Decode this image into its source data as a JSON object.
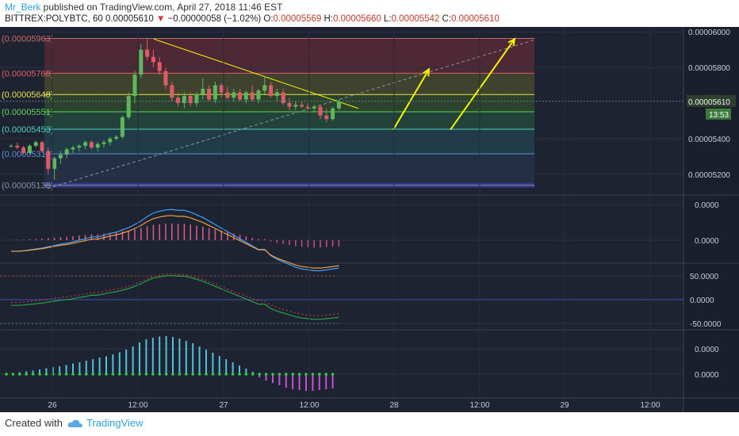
{
  "header": {
    "author": "Mr_Berk",
    "published_text": " published on TradingView.com, April 27, 2018 11:46 EST",
    "symbol": "BITTREX:POLYBTC, 60",
    "last": "0.00005610",
    "change_arrow": "▼",
    "change": "−0.00000058 (−1.02%)",
    "o_label": "O:",
    "o": "0.00005569",
    "h_label": "H:",
    "h": "0.00005660",
    "l_label": "L:",
    "l": "0.00005542",
    "c_label": "C:",
    "c": "0.00005610"
  },
  "footer": {
    "created_with": "Created with",
    "brand": "TradingView"
  },
  "colors": {
    "chart_bg": "#1d2330",
    "up": "#5cb85c",
    "down": "#e05b6a",
    "trend": "#f5f500",
    "cyan": "#4fc3d9",
    "magenta": "#c94fd9"
  },
  "chart_data": {
    "type": "candlestick",
    "price_ylim": [
      5.11e-05,
      6.01e-05
    ],
    "price_ticks": [
      {
        "value": 6e-05,
        "label": "0.00006000"
      },
      {
        "value": 5.8e-05,
        "label": "0.00005800"
      },
      {
        "value": 5.4e-05,
        "label": "0.00005400"
      },
      {
        "value": 5.2e-05,
        "label": "0.00005200"
      }
    ],
    "last_price": {
      "value": 5.61e-05,
      "label": "0.00005610",
      "countdown": "13:53"
    },
    "fib_levels": [
      {
        "value": 5.963e-05,
        "label": "(0.00005963)",
        "color": "#c96a6a"
      },
      {
        "value": 5.768e-05,
        "label": "(0.00005768)",
        "color": "#e05b6a"
      },
      {
        "value": 5.648e-05,
        "label": "(0.00005648)",
        "color": "#e3e34a"
      },
      {
        "value": 5.551e-05,
        "label": "(0.00005551)",
        "color": "#5cd65c"
      },
      {
        "value": 5.453e-05,
        "label": "(0.00005453)",
        "color": "#4fd1c5"
      },
      {
        "value": 5.315e-05,
        "label": "(0.00005315)",
        "color": "#5b8fd6"
      },
      {
        "value": 5.138e-05,
        "label": "(0.00005138)",
        "color": "#8a8fa6"
      }
    ],
    "x_ticks": [
      "26",
      "12:00",
      "27",
      "12:00",
      "28",
      "12:00",
      "29",
      "12:00"
    ],
    "candles": [
      [
        5.36e-05,
        5.37e-05,
        5.35e-05,
        5.36e-05
      ],
      [
        5.36e-05,
        5.38e-05,
        5.34e-05,
        5.35e-05
      ],
      [
        5.35e-05,
        5.36e-05,
        5.31e-05,
        5.32e-05
      ],
      [
        5.32e-05,
        5.37e-05,
        5.31e-05,
        5.36e-05
      ],
      [
        5.36e-05,
        5.39e-05,
        5.35e-05,
        5.38e-05
      ],
      [
        5.38e-05,
        5.39e-05,
        5.32e-05,
        5.33e-05
      ],
      [
        5.33e-05,
        5.35e-05,
        5.2e-05,
        5.23e-05
      ],
      [
        5.23e-05,
        5.3e-05,
        5.17e-05,
        5.29e-05
      ],
      [
        5.29e-05,
        5.33e-05,
        5.26e-05,
        5.31e-05
      ],
      [
        5.31e-05,
        5.35e-05,
        5.29e-05,
        5.34e-05
      ],
      [
        5.34e-05,
        5.36e-05,
        5.32e-05,
        5.35e-05
      ],
      [
        5.35e-05,
        5.37e-05,
        5.33e-05,
        5.36e-05
      ],
      [
        5.36e-05,
        5.39e-05,
        5.34e-05,
        5.38e-05
      ],
      [
        5.38e-05,
        5.39e-05,
        5.34e-05,
        5.35e-05
      ],
      [
        5.35e-05,
        5.38e-05,
        5.33e-05,
        5.37e-05
      ],
      [
        5.37e-05,
        5.39e-05,
        5.35e-05,
        5.38e-05
      ],
      [
        5.38e-05,
        5.41e-05,
        5.36e-05,
        5.4e-05
      ],
      [
        5.4e-05,
        5.42e-05,
        5.39e-05,
        5.41e-05
      ],
      [
        5.41e-05,
        5.53e-05,
        5.4e-05,
        5.52e-05
      ],
      [
        5.52e-05,
        5.66e-05,
        5.51e-05,
        5.64e-05
      ],
      [
        5.64e-05,
        5.78e-05,
        5.6e-05,
        5.76e-05
      ],
      [
        5.76e-05,
        5.93e-05,
        5.74e-05,
        5.9e-05
      ],
      [
        5.9e-05,
        5.96e-05,
        5.84e-05,
        5.86e-05
      ],
      [
        5.86e-05,
        5.9e-05,
        5.8e-05,
        5.83e-05
      ],
      [
        5.83e-05,
        5.86e-05,
        5.76e-05,
        5.78e-05
      ],
      [
        5.78e-05,
        5.8e-05,
        5.68e-05,
        5.7e-05
      ],
      [
        5.7e-05,
        5.72e-05,
        5.61e-05,
        5.63e-05
      ],
      [
        5.63e-05,
        5.66e-05,
        5.58e-05,
        5.6e-05
      ],
      [
        5.6e-05,
        5.66e-05,
        5.57e-05,
        5.64e-05
      ],
      [
        5.64e-05,
        5.66e-05,
        5.58e-05,
        5.6e-05
      ],
      [
        5.6e-05,
        5.66e-05,
        5.58e-05,
        5.65e-05
      ],
      [
        5.65e-05,
        5.74e-05,
        5.62e-05,
        5.68e-05
      ],
      [
        5.68e-05,
        5.7e-05,
        5.61e-05,
        5.62e-05
      ],
      [
        5.62e-05,
        5.72e-05,
        5.6e-05,
        5.7e-05
      ],
      [
        5.7e-05,
        5.71e-05,
        5.63e-05,
        5.66e-05
      ],
      [
        5.66e-05,
        5.69e-05,
        5.62e-05,
        5.63e-05
      ],
      [
        5.63e-05,
        5.68e-05,
        5.61e-05,
        5.66e-05
      ],
      [
        5.66e-05,
        5.68e-05,
        5.61e-05,
        5.62e-05
      ],
      [
        5.62e-05,
        5.67e-05,
        5.6e-05,
        5.66e-05
      ],
      [
        5.66e-05,
        5.7e-05,
        5.61e-05,
        5.62e-05
      ],
      [
        5.62e-05,
        5.68e-05,
        5.6e-05,
        5.67e-05
      ],
      [
        5.67e-05,
        5.75e-05,
        5.65e-05,
        5.7e-05
      ],
      [
        5.7e-05,
        5.72e-05,
        5.63e-05,
        5.64e-05
      ],
      [
        5.64e-05,
        5.68e-05,
        5.61e-05,
        5.66e-05
      ],
      [
        5.66e-05,
        5.68e-05,
        5.59e-05,
        5.6e-05
      ],
      [
        5.6e-05,
        5.63e-05,
        5.56e-05,
        5.58e-05
      ],
      [
        5.58e-05,
        5.61e-05,
        5.56e-05,
        5.59e-05
      ],
      [
        5.59e-05,
        5.61e-05,
        5.57e-05,
        5.58e-05
      ],
      [
        5.58e-05,
        5.6e-05,
        5.56e-05,
        5.57e-05
      ],
      [
        5.57e-05,
        5.59e-05,
        5.55e-05,
        5.58e-05
      ],
      [
        5.58e-05,
        5.59e-05,
        5.51e-05,
        5.53e-05
      ],
      [
        5.53e-05,
        5.57e-05,
        5.49e-05,
        5.51e-05
      ],
      [
        5.51e-05,
        5.58e-05,
        5.5e-05,
        5.57e-05
      ],
      [
        5.57e-05,
        5.62e-05,
        5.56e-05,
        5.61e-05
      ]
    ],
    "macd_ticks": [
      {
        "value": 0.0,
        "label": "0.0000"
      },
      {
        "value": 0.0,
        "label": "0.0000"
      }
    ],
    "rsi_ticks": [
      {
        "value": 50,
        "label": "50.0000"
      },
      {
        "value": 0,
        "label": "0.0000"
      },
      {
        "value": -50,
        "label": "-50.0000"
      }
    ],
    "hist_ticks": [
      {
        "value": 1,
        "label": "0.0000"
      },
      {
        "value": 0,
        "label": "0.0000"
      }
    ],
    "histogram": [
      0.02,
      0.03,
      0.05,
      0.07,
      0.09,
      0.12,
      0.15,
      0.18,
      0.2,
      0.23,
      0.27,
      0.3,
      0.34,
      0.38,
      0.42,
      0.45,
      0.5,
      0.55,
      0.62,
      0.7,
      0.8,
      0.88,
      0.92,
      0.95,
      0.96,
      0.94,
      0.9,
      0.84,
      0.78,
      0.7,
      0.62,
      0.54,
      0.46,
      0.38,
      0.3,
      0.22,
      0.14,
      0.06,
      -0.08,
      -0.16,
      -0.22,
      -0.28,
      -0.34,
      -0.38,
      -0.4,
      -0.42,
      -0.42,
      -0.4,
      -0.38,
      -0.36
    ]
  }
}
